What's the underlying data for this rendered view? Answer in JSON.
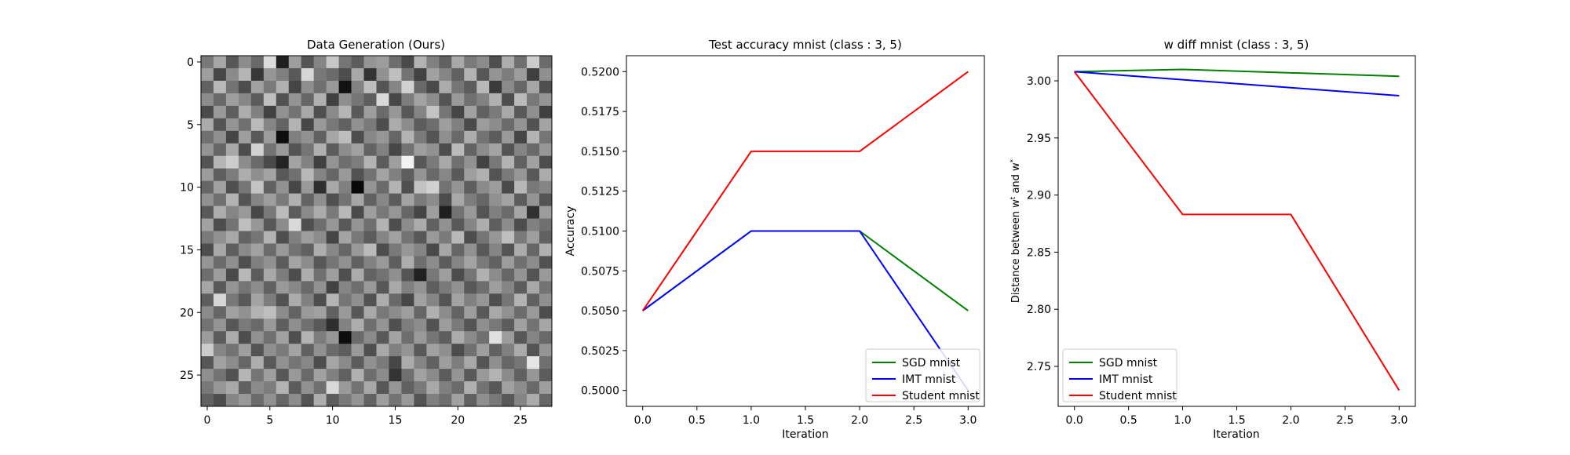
{
  "chart_data": [
    {
      "type": "heatmap",
      "title": "Data Generation (Ours)",
      "xlabel": "",
      "ylabel": "",
      "xticks": [
        0,
        5,
        10,
        15,
        20,
        25
      ],
      "yticks": [
        0,
        5,
        10,
        15,
        20,
        25
      ],
      "xlim": [
        -0.5,
        27.5
      ],
      "ylim": [
        27.5,
        -0.5
      ],
      "colormap": "gray",
      "grid_size": [
        28,
        28
      ],
      "values": [
        [
          0.47,
          0.65,
          0.34,
          0.55,
          0.41,
          0.86,
          0.12,
          0.62,
          0.33,
          0.52,
          0.78,
          0.46,
          0.36,
          0.58,
          0.61,
          0.43,
          0.29,
          0.7,
          0.5,
          0.38,
          0.66,
          0.48,
          0.55,
          0.31,
          0.68,
          0.44,
          0.8,
          0.42
        ],
        [
          0.62,
          0.28,
          0.54,
          0.71,
          0.22,
          0.59,
          0.5,
          0.35,
          0.84,
          0.47,
          0.42,
          0.3,
          0.66,
          0.2,
          0.57,
          0.75,
          0.45,
          0.26,
          0.63,
          0.52,
          0.38,
          0.7,
          0.34,
          0.58,
          0.49,
          0.61,
          0.25,
          0.56
        ],
        [
          0.38,
          0.72,
          0.45,
          0.3,
          0.63,
          0.48,
          0.69,
          0.27,
          0.56,
          0.44,
          0.6,
          0.07,
          0.51,
          0.74,
          0.33,
          0.52,
          0.82,
          0.41,
          0.29,
          0.67,
          0.46,
          0.36,
          0.72,
          0.23,
          0.54,
          0.4,
          0.65,
          0.31
        ],
        [
          0.55,
          0.41,
          0.62,
          0.53,
          0.36,
          0.75,
          0.32,
          0.58,
          0.4,
          0.69,
          0.25,
          0.56,
          0.46,
          0.37,
          0.85,
          0.28,
          0.49,
          0.64,
          0.55,
          0.33,
          0.6,
          0.44,
          0.51,
          0.69,
          0.3,
          0.73,
          0.47,
          0.58
        ],
        [
          0.29,
          0.6,
          0.37,
          0.68,
          0.5,
          0.26,
          0.57,
          0.45,
          0.66,
          0.31,
          0.54,
          0.71,
          0.35,
          0.62,
          0.42,
          0.59,
          0.34,
          0.52,
          0.77,
          0.46,
          0.27,
          0.63,
          0.38,
          0.48,
          0.66,
          0.35,
          0.56,
          0.25
        ],
        [
          0.67,
          0.33,
          0.58,
          0.44,
          0.73,
          0.52,
          0.39,
          0.7,
          0.28,
          0.6,
          0.47,
          0.38,
          0.57,
          0.48,
          0.3,
          0.67,
          0.55,
          0.36,
          0.43,
          0.62,
          0.5,
          0.29,
          0.61,
          0.55,
          0.42,
          0.58,
          0.32,
          0.64
        ],
        [
          0.44,
          0.56,
          0.27,
          0.62,
          0.35,
          0.61,
          0.05,
          0.5,
          0.57,
          0.38,
          0.65,
          0.74,
          0.3,
          0.53,
          0.59,
          0.4,
          0.7,
          0.48,
          0.33,
          0.56,
          0.41,
          0.68,
          0.45,
          0.36,
          0.6,
          0.27,
          0.7,
          0.46
        ],
        [
          0.58,
          0.4,
          0.66,
          0.3,
          0.82,
          0.45,
          0.6,
          0.33,
          0.46,
          0.69,
          0.36,
          0.55,
          0.63,
          0.39,
          0.51,
          0.28,
          0.45,
          0.62,
          0.57,
          0.3,
          0.73,
          0.39,
          0.55,
          0.64,
          0.33,
          0.52,
          0.41,
          0.59
        ],
        [
          0.33,
          0.71,
          0.8,
          0.55,
          0.42,
          0.29,
          0.14,
          0.64,
          0.51,
          0.25,
          0.58,
          0.43,
          0.49,
          0.7,
          0.36,
          0.62,
          0.95,
          0.34,
          0.48,
          0.66,
          0.44,
          0.57,
          0.26,
          0.47,
          0.7,
          0.38,
          0.63,
          0.3
        ],
        [
          0.61,
          0.37,
          0.49,
          0.68,
          0.56,
          0.64,
          0.35,
          0.44,
          0.72,
          0.52,
          0.4,
          0.6,
          0.32,
          0.45,
          0.64,
          0.5,
          0.37,
          0.58,
          0.41,
          0.53,
          0.35,
          0.62,
          0.69,
          0.33,
          0.48,
          0.59,
          0.35,
          0.67
        ],
        [
          0.4,
          0.63,
          0.31,
          0.46,
          0.77,
          0.38,
          0.57,
          0.28,
          0.6,
          0.18,
          0.66,
          0.5,
          0.03,
          0.58,
          0.42,
          0.7,
          0.31,
          0.76,
          0.82,
          0.45,
          0.58,
          0.37,
          0.54,
          0.61,
          0.29,
          0.72,
          0.47,
          0.52
        ],
        [
          0.57,
          0.44,
          0.7,
          0.33,
          0.52,
          0.62,
          0.48,
          0.69,
          0.39,
          0.56,
          0.31,
          0.45,
          0.65,
          0.38,
          0.53,
          0.36,
          0.64,
          0.48,
          0.55,
          0.3,
          0.66,
          0.49,
          0.4,
          0.57,
          0.64,
          0.36,
          0.58,
          0.33
        ],
        [
          0.35,
          0.68,
          0.52,
          0.6,
          0.28,
          0.47,
          0.73,
          0.36,
          0.54,
          0.67,
          0.48,
          0.72,
          0.29,
          0.62,
          0.47,
          0.59,
          0.4,
          0.27,
          0.62,
          0.12,
          0.45,
          0.6,
          0.33,
          0.5,
          0.42,
          0.65,
          0.19,
          0.61
        ],
        [
          0.63,
          0.3,
          0.45,
          0.75,
          0.59,
          0.34,
          0.55,
          0.85,
          0.31,
          0.43,
          0.59,
          0.35,
          0.58,
          0.44,
          0.7,
          0.3,
          0.55,
          0.67,
          0.38,
          0.57,
          0.35,
          0.52,
          0.68,
          0.37,
          0.55,
          0.3,
          0.5,
          0.44
        ],
        [
          0.48,
          0.57,
          0.66,
          0.39,
          0.46,
          0.7,
          0.31,
          0.5,
          0.62,
          0.55,
          0.27,
          0.64,
          0.47,
          0.36,
          0.52,
          0.63,
          0.45,
          0.34,
          0.6,
          0.48,
          0.72,
          0.3,
          0.46,
          0.59,
          0.75,
          0.48,
          0.62,
          0.38
        ],
        [
          0.3,
          0.66,
          0.37,
          0.54,
          0.63,
          0.42,
          0.6,
          0.45,
          0.38,
          0.68,
          0.53,
          0.4,
          0.6,
          0.73,
          0.3,
          0.48,
          0.59,
          0.52,
          0.29,
          0.65,
          0.4,
          0.57,
          0.35,
          0.52,
          0.33,
          0.67,
          0.4,
          0.69
        ],
        [
          0.59,
          0.42,
          0.56,
          0.31,
          0.5,
          0.57,
          0.36,
          0.64,
          0.55,
          0.34,
          0.46,
          0.57,
          0.38,
          0.51,
          0.6,
          0.37,
          0.68,
          0.43,
          0.55,
          0.36,
          0.52,
          0.64,
          0.48,
          0.38,
          0.61,
          0.44,
          0.55,
          0.32
        ],
        [
          0.43,
          0.61,
          0.29,
          0.72,
          0.36,
          0.66,
          0.49,
          0.3,
          0.68,
          0.44,
          0.62,
          0.31,
          0.67,
          0.39,
          0.45,
          0.56,
          0.33,
          0.13,
          0.47,
          0.62,
          0.3,
          0.46,
          0.69,
          0.55,
          0.4,
          0.58,
          0.33,
          0.6
        ],
        [
          0.65,
          0.35,
          0.58,
          0.46,
          0.55,
          0.38,
          0.6,
          0.53,
          0.41,
          0.57,
          0.26,
          0.52,
          0.43,
          0.6,
          0.34,
          0.66,
          0.5,
          0.58,
          0.37,
          0.48,
          0.57,
          0.35,
          0.43,
          0.62,
          0.52,
          0.36,
          0.66,
          0.45
        ],
        [
          0.37,
          0.84,
          0.47,
          0.35,
          0.64,
          0.49,
          0.32,
          0.67,
          0.5,
          0.3,
          0.71,
          0.46,
          0.56,
          0.32,
          0.68,
          0.41,
          0.28,
          0.63,
          0.52,
          0.33,
          0.64,
          0.5,
          0.59,
          0.31,
          0.46,
          0.7,
          0.38,
          0.56
        ],
        [
          0.54,
          0.4,
          0.63,
          0.57,
          0.7,
          0.75,
          0.55,
          0.39,
          0.6,
          0.63,
          0.38,
          0.6,
          0.34,
          0.66,
          0.47,
          0.55,
          0.62,
          0.4,
          0.69,
          0.55,
          0.39,
          0.62,
          0.35,
          0.66,
          0.57,
          0.42,
          0.6,
          0.3
        ],
        [
          0.45,
          0.58,
          0.34,
          0.48,
          0.41,
          0.6,
          0.37,
          0.56,
          0.44,
          0.35,
          0.18,
          0.51,
          0.68,
          0.43,
          0.58,
          0.31,
          0.49,
          0.55,
          0.32,
          0.61,
          0.48,
          0.33,
          0.56,
          0.47,
          0.36,
          0.63,
          0.45,
          0.65
        ],
        [
          0.61,
          0.36,
          0.67,
          0.3,
          0.57,
          0.44,
          0.63,
          0.31,
          0.7,
          0.49,
          0.59,
          0.05,
          0.42,
          0.54,
          0.35,
          0.64,
          0.43,
          0.6,
          0.46,
          0.37,
          0.67,
          0.54,
          0.44,
          0.88,
          0.61,
          0.34,
          0.52,
          0.41
        ],
        [
          0.8,
          0.52,
          0.45,
          0.62,
          0.33,
          0.56,
          0.48,
          0.64,
          0.38,
          0.57,
          0.42,
          0.37,
          0.6,
          0.31,
          0.66,
          0.5,
          0.58,
          0.35,
          0.63,
          0.56,
          0.3,
          0.44,
          0.62,
          0.38,
          0.5,
          0.67,
          0.33,
          0.58
        ],
        [
          0.34,
          0.63,
          0.55,
          0.4,
          0.68,
          0.35,
          0.57,
          0.46,
          0.53,
          0.3,
          0.65,
          0.54,
          0.36,
          0.57,
          0.48,
          0.28,
          0.67,
          0.52,
          0.38,
          0.62,
          0.49,
          0.66,
          0.33,
          0.56,
          0.4,
          0.46,
          0.9,
          0.44
        ],
        [
          0.56,
          0.45,
          0.32,
          0.71,
          0.46,
          0.62,
          0.34,
          0.6,
          0.41,
          0.63,
          0.5,
          0.38,
          0.69,
          0.43,
          0.55,
          0.2,
          0.44,
          0.63,
          0.54,
          0.36,
          0.58,
          0.35,
          0.6,
          0.7,
          0.54,
          0.38,
          0.59,
          0.36
        ],
        [
          0.47,
          0.59,
          0.66,
          0.38,
          0.54,
          0.49,
          0.7,
          0.36,
          0.57,
          0.44,
          0.85,
          0.6,
          0.45,
          0.66,
          0.34,
          0.59,
          0.38,
          0.48,
          0.66,
          0.5,
          0.42,
          0.69,
          0.45,
          0.34,
          0.63,
          0.55,
          0.41,
          0.62
        ],
        [
          0.38,
          0.3,
          0.52,
          0.6,
          0.42,
          0.57,
          0.4,
          0.55,
          0.33,
          0.68,
          0.36,
          0.47,
          0.58,
          0.39,
          0.62,
          0.45,
          0.6,
          0.33,
          0.5,
          0.43,
          0.63,
          0.38,
          0.56,
          0.47,
          0.35,
          0.52,
          0.67,
          0.4
        ]
      ]
    },
    {
      "type": "line",
      "title": "Test accuracy mnist (class : 3, 5)",
      "xlabel": "Iteration",
      "ylabel": "Accuracy",
      "xlim": [
        -0.15,
        3.15
      ],
      "ylim": [
        0.499,
        0.521
      ],
      "xticks": [
        "0.0",
        "0.5",
        "1.0",
        "1.5",
        "2.0",
        "2.5",
        "3.0"
      ],
      "yticks": [
        "0.5000",
        "0.5025",
        "0.5050",
        "0.5075",
        "0.5100",
        "0.5125",
        "0.5150",
        "0.5175",
        "0.5200"
      ],
      "x": [
        0,
        1,
        2,
        3
      ],
      "legend": "lower right",
      "grid": false,
      "series": [
        {
          "name": "SGD mnist",
          "color": "#008000",
          "values": [
            0.505,
            0.51,
            0.51,
            0.505
          ]
        },
        {
          "name": "IMT mnist",
          "color": "#0000ff",
          "values": [
            0.505,
            0.51,
            0.51,
            0.5
          ]
        },
        {
          "name": "Student mnist",
          "color": "#ff0000",
          "values": [
            0.505,
            0.515,
            0.515,
            0.52
          ]
        }
      ]
    },
    {
      "type": "line",
      "title": "w diff mnist (class : 3, 5)",
      "xlabel": "Iteration",
      "ylabel": "Distance between w^t and w^*",
      "xlim": [
        -0.15,
        3.15
      ],
      "ylim": [
        2.715,
        3.022
      ],
      "xticks": [
        "0.0",
        "0.5",
        "1.0",
        "1.5",
        "2.0",
        "2.5",
        "3.0"
      ],
      "yticks": [
        "2.75",
        "2.80",
        "2.85",
        "2.90",
        "2.95",
        "3.00"
      ],
      "x": [
        0,
        1,
        2,
        3
      ],
      "legend": "lower left",
      "grid": false,
      "series": [
        {
          "name": "SGD mnist",
          "color": "#008000",
          "values": [
            3.008,
            3.01,
            3.007,
            3.004
          ]
        },
        {
          "name": "IMT mnist",
          "color": "#0000ff",
          "values": [
            3.008,
            3.001,
            2.994,
            2.987
          ]
        },
        {
          "name": "Student mnist",
          "color": "#ff0000",
          "values": [
            3.008,
            2.883,
            2.883,
            2.729
          ]
        }
      ]
    }
  ]
}
